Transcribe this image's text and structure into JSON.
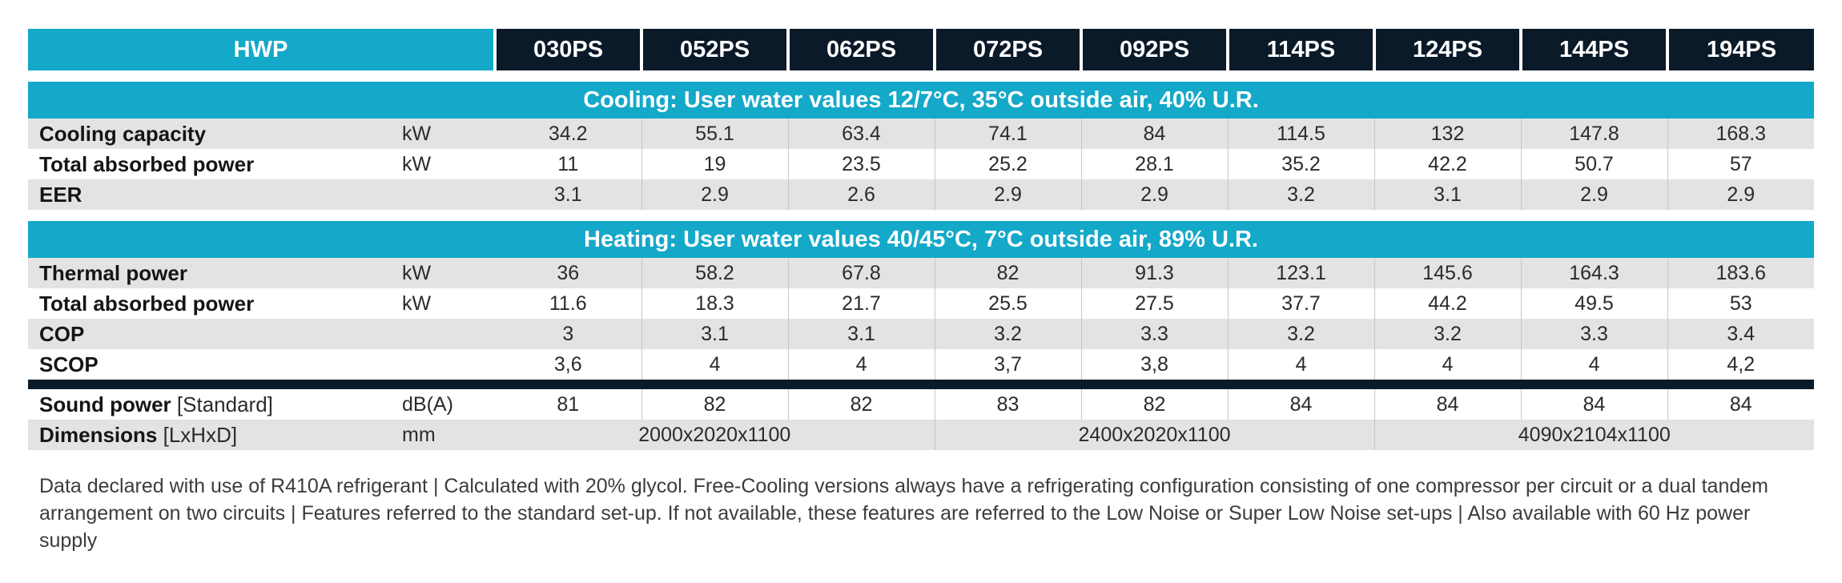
{
  "header": {
    "series": "HWP",
    "models": [
      "030PS",
      "052PS",
      "062PS",
      "072PS",
      "092PS",
      "114PS",
      "124PS",
      "144PS",
      "194PS"
    ]
  },
  "cooling": {
    "title": "Cooling: User water values 12/7°C, 35°C outside air, 40% U.R.",
    "rows": [
      {
        "label": "Cooling capacity",
        "unit": "kW",
        "values": [
          "34.2",
          "55.1",
          "63.4",
          "74.1",
          "84",
          "114.5",
          "132",
          "147.8",
          "168.3"
        ]
      },
      {
        "label": "Total absorbed power",
        "unit": "kW",
        "values": [
          "11",
          "19",
          "23.5",
          "25.2",
          "28.1",
          "35.2",
          "42.2",
          "50.7",
          "57"
        ]
      },
      {
        "label": "EER",
        "unit": "",
        "values": [
          "3.1",
          "2.9",
          "2.6",
          "2.9",
          "2.9",
          "3.2",
          "3.1",
          "2.9",
          "2.9"
        ]
      }
    ]
  },
  "heating": {
    "title": "Heating: User water values 40/45°C, 7°C outside air, 89% U.R.",
    "rows": [
      {
        "label": "Thermal power",
        "unit": "kW",
        "values": [
          "36",
          "58.2",
          "67.8",
          "82",
          "91.3",
          "123.1",
          "145.6",
          "164.3",
          "183.6"
        ]
      },
      {
        "label": "Total absorbed power",
        "unit": "kW",
        "values": [
          "11.6",
          "18.3",
          "21.7",
          "25.5",
          "27.5",
          "37.7",
          "44.2",
          "49.5",
          "53"
        ]
      },
      {
        "label": "COP",
        "unit": "",
        "values": [
          "3",
          "3.1",
          "3.1",
          "3.2",
          "3.3",
          "3.2",
          "3.2",
          "3.3",
          "3.4"
        ]
      },
      {
        "label": "SCOP",
        "unit": "",
        "values": [
          "3,6",
          "4",
          "4",
          "3,7",
          "3,8",
          "4",
          "4",
          "4",
          "4,2"
        ]
      }
    ]
  },
  "sound": {
    "label": "Sound power",
    "sub": "[Standard]",
    "unit": "dB(A)",
    "values": [
      "81",
      "82",
      "82",
      "83",
      "82",
      "84",
      "84",
      "84",
      "84"
    ]
  },
  "dimensions": {
    "label": "Dimensions",
    "sub": "[LxHxD]",
    "unit": "mm",
    "groups": [
      "2000x2020x1100",
      "2400x2020x1100",
      "4090x2104x1100"
    ]
  },
  "footnote": "Data declared with use of R410A refrigerant | Calculated with 20% glycol. Free-Cooling versions always have a refrigerating configuration consisting of one compressor per circuit or a dual tandem arrangement on two circuits | Features referred to the standard set-up. If not available, these features are referred to the Low Noise or Super Low Noise set-ups | Also available with 60 Hz power supply",
  "colors": {
    "accent": "#14a8c9",
    "dark": "#0b1a28",
    "row_gray": "#e3e3e3"
  }
}
